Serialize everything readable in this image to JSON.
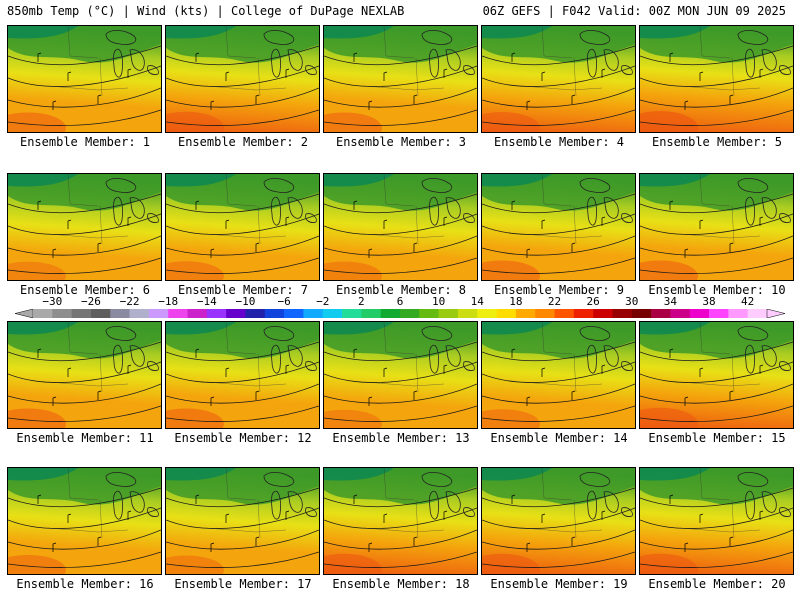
{
  "header": {
    "left": "850mb Temp (°C) | Wind (kts) | College of DuPage NEXLAB",
    "right": "06Z GEFS | F042 Valid: 00Z MON JUN 09 2025"
  },
  "members": [
    {
      "label": "Ensemble Member: 1",
      "warm": 0.55
    },
    {
      "label": "Ensemble Member: 2",
      "warm": 0.62
    },
    {
      "label": "Ensemble Member: 3",
      "warm": 0.55
    },
    {
      "label": "Ensemble Member: 4",
      "warm": 0.6
    },
    {
      "label": "Ensemble Member: 5",
      "warm": 0.7
    },
    {
      "label": "Ensemble Member: 6",
      "warm": 0.42
    },
    {
      "label": "Ensemble Member: 7",
      "warm": 0.48
    },
    {
      "label": "Ensemble Member: 8",
      "warm": 0.45
    },
    {
      "label": "Ensemble Member: 9",
      "warm": 0.55
    },
    {
      "label": "Ensemble Member: 10",
      "warm": 0.55
    },
    {
      "label": "Ensemble Member: 11",
      "warm": 0.55
    },
    {
      "label": "Ensemble Member: 12",
      "warm": 0.55
    },
    {
      "label": "Ensemble Member: 13",
      "warm": 0.42
    },
    {
      "label": "Ensemble Member: 14",
      "warm": 0.48
    },
    {
      "label": "Ensemble Member: 15",
      "warm": 0.62
    },
    {
      "label": "Ensemble Member: 16",
      "warm": 0.5
    },
    {
      "label": "Ensemble Member: 17",
      "warm": 0.45
    },
    {
      "label": "Ensemble Member: 18",
      "warm": 0.62
    },
    {
      "label": "Ensemble Member: 19",
      "warm": 0.62
    },
    {
      "label": "Ensemble Member: 20",
      "warm": 0.62
    }
  ],
  "colorbar": {
    "labels": [
      "−30",
      "−26",
      "−22",
      "−18",
      "−14",
      "−10",
      "−6",
      "−2",
      "2",
      "6",
      "10",
      "14",
      "18",
      "22",
      "26",
      "30",
      "34",
      "38",
      "42"
    ],
    "colors": [
      "#a9a9a9",
      "#8e8e8e",
      "#767676",
      "#5e5e5e",
      "#8a8aa0",
      "#b0b0cc",
      "#cc99ff",
      "#ee44ee",
      "#cc22cc",
      "#9933ff",
      "#6600cc",
      "#2222aa",
      "#1144dd",
      "#1166ff",
      "#11aaff",
      "#11ccee",
      "#22dd99",
      "#22cc66",
      "#11aa33",
      "#33aa22",
      "#66bb11",
      "#99cc11",
      "#ccdd11",
      "#eeee11",
      "#ffdd00",
      "#ffaa00",
      "#ff8800",
      "#ff5500",
      "#ee2200",
      "#cc0000",
      "#990000",
      "#770000",
      "#aa0044",
      "#cc0088",
      "#ee00cc",
      "#ff44ff",
      "#ff99ff",
      "#ffccff"
    ]
  },
  "palette": {
    "deep_green": "#0f8a50",
    "green": "#3e9a28",
    "yellow_green": "#a8cc22",
    "yellow": "#e8e016",
    "orange": "#f4a40c",
    "red_orange": "#ee5a10"
  }
}
